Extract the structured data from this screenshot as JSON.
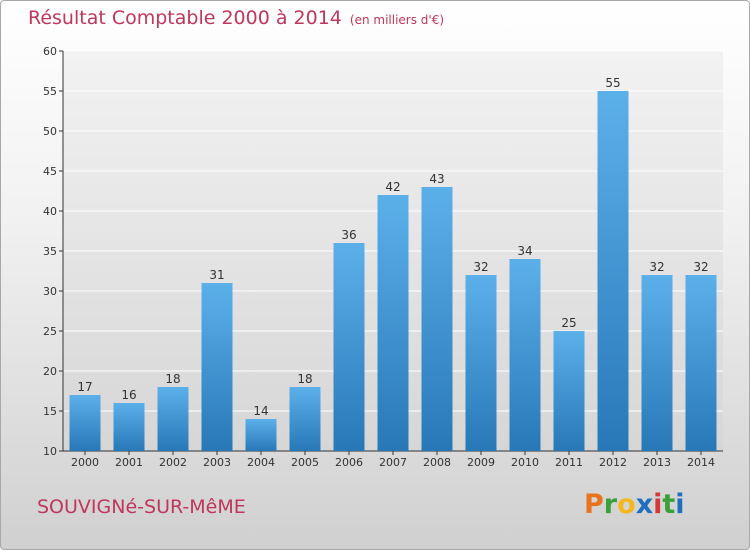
{
  "header": {
    "title": "Résultat Comptable 2000 à 2014",
    "subtitle": "(en milliers d'€)"
  },
  "footer": {
    "commune": "SOUVIGNé-SUR-MêME",
    "brand": "Proxiti",
    "brand_letters": [
      {
        "ch": "P",
        "color": "#e8731c"
      },
      {
        "ch": "r",
        "color": "#3aa03a"
      },
      {
        "ch": "o",
        "color": "#f2b81c"
      },
      {
        "ch": "x",
        "color": "#1f6fbf"
      },
      {
        "ch": "i",
        "color": "#d43a3a"
      },
      {
        "ch": "t",
        "color": "#3aa03a"
      },
      {
        "ch": "i",
        "color": "#1f6fbf"
      }
    ]
  },
  "colors": {
    "bar_top": "#5cb0ea",
    "bar_bottom": "#2878b8",
    "grid": "#ffffff",
    "axis": "#333333"
  },
  "chart_data": {
    "type": "bar",
    "title": "Résultat Comptable 2000 à 2014",
    "subtitle": "(en milliers d'€)",
    "xlabel": "",
    "ylabel": "",
    "categories": [
      "2000",
      "2001",
      "2002",
      "2003",
      "2004",
      "2005",
      "2006",
      "2007",
      "2008",
      "2009",
      "2010",
      "2011",
      "2012",
      "2013",
      "2014"
    ],
    "values": [
      17,
      16,
      18,
      31,
      14,
      18,
      36,
      42,
      43,
      32,
      34,
      25,
      55,
      32,
      32
    ],
    "ylim": [
      10,
      60
    ],
    "yticks": [
      10,
      15,
      20,
      25,
      30,
      35,
      40,
      45,
      50,
      55,
      60
    ],
    "grid": true
  }
}
